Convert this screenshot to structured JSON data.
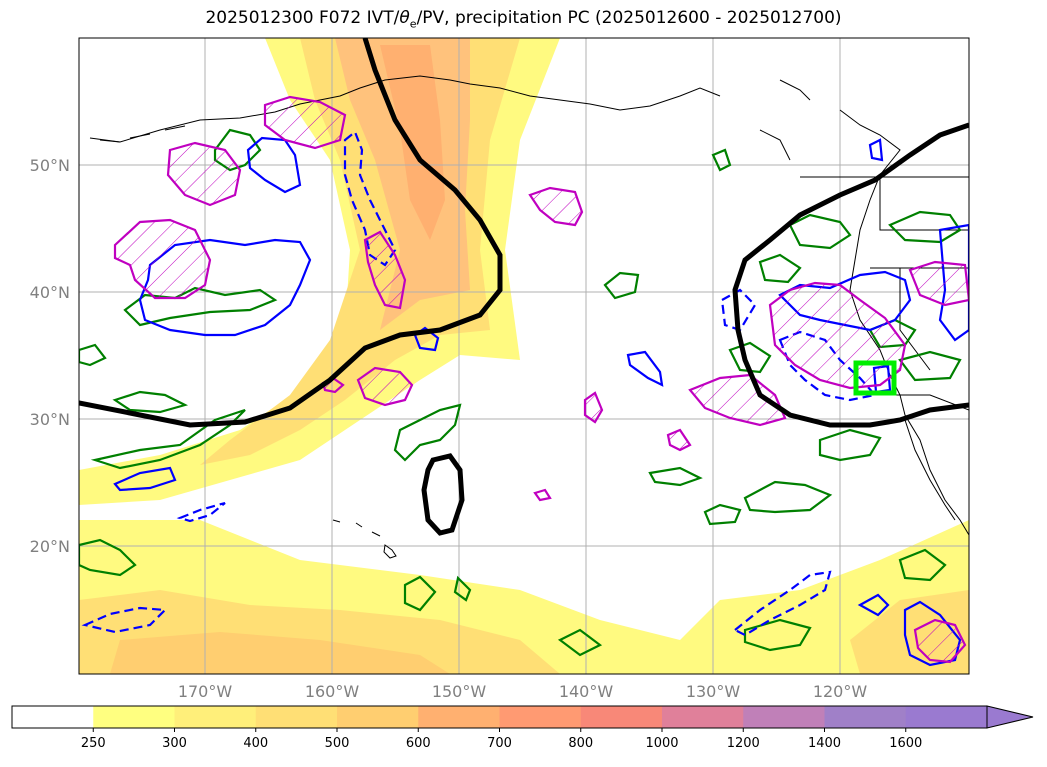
{
  "figure": {
    "title_prefix": "2025012300 F072 IVT/",
    "title_theta": "θ",
    "title_sub": "e",
    "title_suffix": "/PV, precipitation PC (2025012600 - 2025012700)"
  },
  "map": {
    "lat_labels": [
      "50°N",
      "40°N",
      "30°N",
      "20°N"
    ],
    "lon_labels": [
      "170°W",
      "160°W",
      "150°W",
      "140°W",
      "130°W",
      "120°W"
    ]
  },
  "colorbar": {
    "tick_labels": [
      "250",
      "300",
      "400",
      "500",
      "600",
      "700",
      "800",
      "1000",
      "1200",
      "1400",
      "1600"
    ],
    "colors": [
      "#ffffff",
      "#ffff80",
      "#ffef7a",
      "#ffdf75",
      "#ffce70",
      "#ffb070",
      "#ff9a72",
      "#f88878",
      "#e0809a",
      "#c080b8",
      "#a080c8",
      "#9a7ad0"
    ],
    "extend": "max"
  },
  "colors": {
    "ivt_jet": "#ffc080",
    "theta_contour": "#000000",
    "precip_contour": "#008000",
    "pv_contour": "#0000ff",
    "hatch_contour": "#c000c0",
    "target_box": "#00ee00"
  }
}
